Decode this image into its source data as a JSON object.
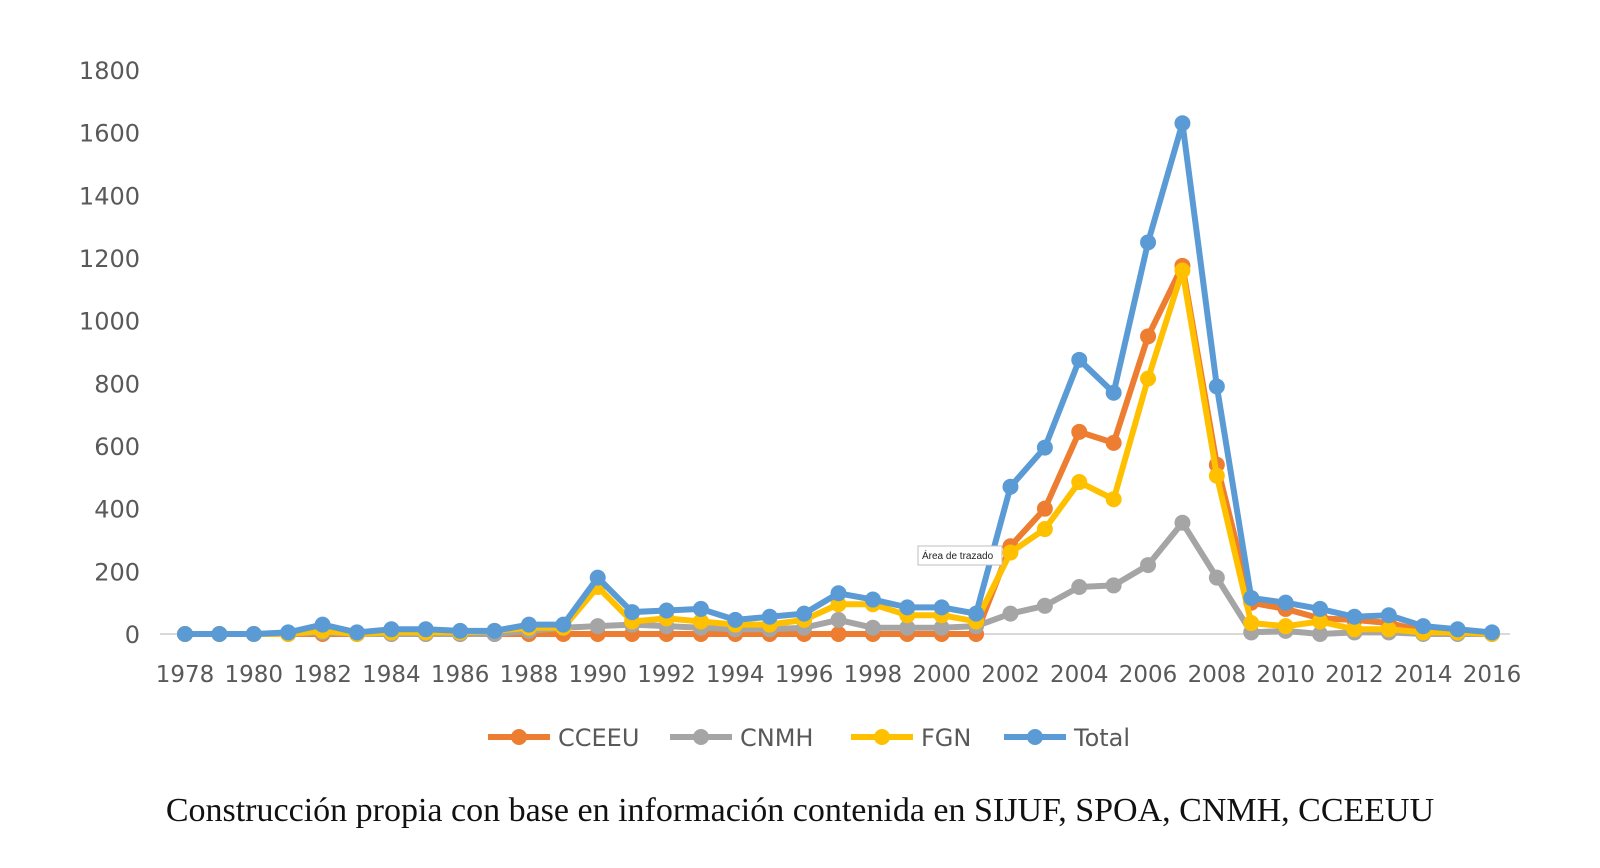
{
  "chart_data": {
    "type": "line",
    "title": "",
    "xlabel": "",
    "ylabel": "",
    "ylim": [
      0,
      1800
    ],
    "y_ticks": [
      "0",
      "200",
      "400",
      "600",
      "800",
      "1000",
      "1200",
      "1400",
      "1600",
      "1800"
    ],
    "x_tick_labels": [
      "1978",
      "1980",
      "1982",
      "1984",
      "1986",
      "1988",
      "1990",
      "1992",
      "1994",
      "1996",
      "1998",
      "2000",
      "2002",
      "2004",
      "2006",
      "2008",
      "2010",
      "2012",
      "2014",
      "2016"
    ],
    "x": [
      1978,
      1979,
      1980,
      1981,
      1982,
      1983,
      1984,
      1985,
      1986,
      1987,
      1988,
      1989,
      1990,
      1991,
      1992,
      1993,
      1994,
      1995,
      1996,
      1997,
      1998,
      1999,
      2000,
      2001,
      2002,
      2003,
      2004,
      2005,
      2006,
      2007,
      2008,
      2009,
      2010,
      2011,
      2012,
      2013,
      2014,
      2015,
      2016
    ],
    "grid": false,
    "legend_position": "bottom",
    "series": [
      {
        "name": "CCEEU",
        "color": "#ED7D31",
        "values": [
          0,
          0,
          0,
          0,
          0,
          0,
          0,
          0,
          0,
          0,
          0,
          0,
          0,
          0,
          0,
          0,
          0,
          0,
          0,
          0,
          0,
          0,
          0,
          0,
          280,
          400,
          645,
          610,
          950,
          1175,
          540,
          100,
          80,
          50,
          45,
          35,
          10,
          5,
          0
        ]
      },
      {
        "name": "CNMH",
        "color": "#A5A5A5",
        "values": [
          0,
          0,
          0,
          0,
          5,
          0,
          0,
          0,
          0,
          0,
          10,
          20,
          25,
          30,
          25,
          20,
          15,
          15,
          20,
          45,
          20,
          20,
          20,
          25,
          65,
          90,
          150,
          155,
          220,
          355,
          180,
          5,
          10,
          0,
          5,
          5,
          0,
          0,
          0
        ]
      },
      {
        "name": "FGN",
        "color": "#FFC000",
        "values": [
          0,
          0,
          0,
          0,
          10,
          0,
          5,
          5,
          5,
          10,
          20,
          20,
          150,
          40,
          50,
          40,
          30,
          30,
          45,
          95,
          95,
          60,
          60,
          40,
          260,
          335,
          485,
          430,
          815,
          1160,
          505,
          35,
          25,
          40,
          15,
          15,
          5,
          5,
          0
        ]
      },
      {
        "name": "Total",
        "color": "#5B9BD5",
        "values": [
          0,
          0,
          0,
          5,
          30,
          5,
          15,
          15,
          10,
          10,
          30,
          30,
          180,
          70,
          75,
          80,
          45,
          55,
          65,
          130,
          110,
          85,
          85,
          65,
          470,
          595,
          875,
          770,
          1250,
          1630,
          790,
          115,
          100,
          80,
          55,
          60,
          25,
          15,
          5
        ]
      }
    ]
  },
  "tooltip": "Área de trazado",
  "caption": "Construcción propia con base en información contenida en SIJUF, SPOA, CNMH, CCEEUU"
}
